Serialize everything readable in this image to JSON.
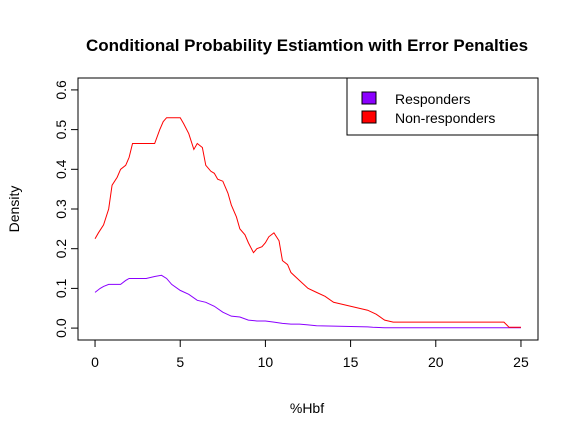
{
  "chart_data": {
    "type": "line",
    "title": "Conditional Probability Estiamtion with Error Penalties",
    "xlabel": "%Hbf",
    "ylabel": "Density",
    "xlim": [
      -1,
      26
    ],
    "ylim": [
      -0.03,
      0.63
    ],
    "x_ticks": [
      "0",
      "5",
      "10",
      "15",
      "20",
      "25"
    ],
    "y_ticks": [
      "0.0",
      "0.1",
      "0.2",
      "0.3",
      "0.4",
      "0.5",
      "0.6"
    ],
    "legend_position": "top-right",
    "grid": false,
    "series": [
      {
        "name": "Responders",
        "color": "#8B00FF",
        "x": [
          0,
          0.3,
          0.5,
          0.8,
          1.0,
          1.5,
          1.8,
          2.0,
          2.5,
          3.0,
          3.5,
          3.9,
          4.2,
          4.5,
          5.0,
          5.5,
          6.0,
          6.5,
          7.0,
          7.5,
          8.0,
          8.5,
          9.0,
          9.5,
          10.0,
          10.5,
          11.0,
          11.5,
          12.0,
          12.5,
          13.0,
          14.0,
          15.0,
          16.0,
          16.3,
          17.0,
          18.0,
          20.0,
          22.0,
          24.0,
          25.0
        ],
        "y": [
          0.09,
          0.1,
          0.105,
          0.11,
          0.11,
          0.11,
          0.12,
          0.125,
          0.125,
          0.125,
          0.13,
          0.133,
          0.125,
          0.11,
          0.095,
          0.085,
          0.07,
          0.065,
          0.055,
          0.04,
          0.03,
          0.028,
          0.02,
          0.018,
          0.018,
          0.015,
          0.012,
          0.01,
          0.01,
          0.008,
          0.006,
          0.005,
          0.004,
          0.003,
          0.002,
          0.001,
          0.001,
          0.001,
          0.001,
          0.001,
          0.001
        ]
      },
      {
        "name": "Non-responders",
        "color": "#FF0000",
        "x": [
          0,
          0.2,
          0.5,
          0.8,
          1.0,
          1.3,
          1.5,
          1.8,
          2.0,
          2.2,
          2.5,
          3.0,
          3.5,
          3.8,
          4.0,
          4.2,
          4.5,
          5.0,
          5.2,
          5.5,
          5.8,
          6.0,
          6.3,
          6.5,
          6.8,
          7.0,
          7.2,
          7.5,
          7.8,
          8.0,
          8.3,
          8.5,
          8.8,
          9.0,
          9.3,
          9.5,
          9.8,
          10.0,
          10.2,
          10.5,
          10.8,
          11.0,
          11.3,
          11.5,
          12.0,
          12.5,
          13.0,
          13.5,
          14.0,
          14.5,
          15.0,
          15.5,
          16.0,
          16.5,
          17.0,
          17.5,
          18.0,
          19.0,
          20.0,
          22.0,
          24.0,
          24.3,
          25.0
        ],
        "y": [
          0.225,
          0.24,
          0.26,
          0.3,
          0.36,
          0.38,
          0.4,
          0.41,
          0.43,
          0.465,
          0.465,
          0.465,
          0.465,
          0.5,
          0.52,
          0.53,
          0.53,
          0.53,
          0.515,
          0.49,
          0.45,
          0.465,
          0.455,
          0.41,
          0.395,
          0.39,
          0.375,
          0.37,
          0.34,
          0.31,
          0.28,
          0.25,
          0.235,
          0.215,
          0.19,
          0.2,
          0.205,
          0.215,
          0.23,
          0.24,
          0.22,
          0.17,
          0.16,
          0.14,
          0.12,
          0.1,
          0.09,
          0.08,
          0.065,
          0.06,
          0.055,
          0.05,
          0.045,
          0.035,
          0.02,
          0.015,
          0.015,
          0.015,
          0.015,
          0.015,
          0.015,
          0.002,
          0.002
        ]
      }
    ]
  }
}
